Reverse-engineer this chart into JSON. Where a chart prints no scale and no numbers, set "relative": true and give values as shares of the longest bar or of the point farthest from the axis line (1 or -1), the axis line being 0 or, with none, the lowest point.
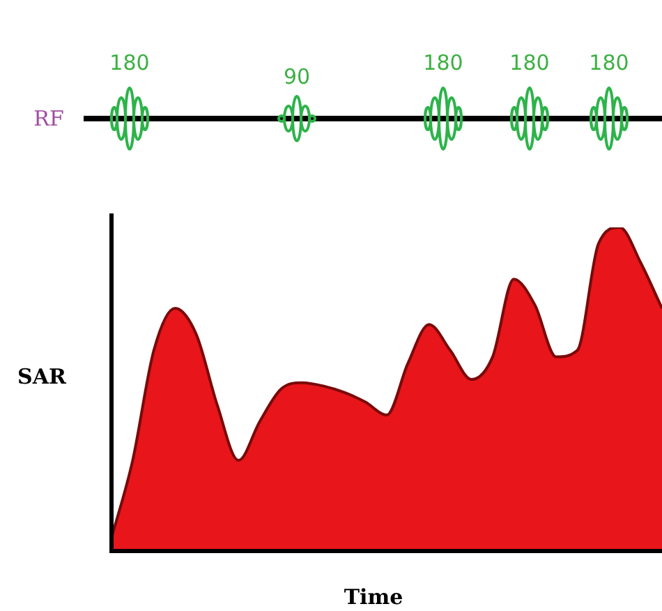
{
  "chart_data": {
    "type": "area",
    "relative": true,
    "xlabel": "Time",
    "ylabel": "SAR",
    "annotations": [
      "RF",
      "180",
      "90",
      "180",
      "180",
      "180"
    ],
    "categories": [
      null,
      null,
      null,
      null,
      null,
      null,
      null,
      null,
      null,
      null,
      null,
      null,
      null,
      null,
      null,
      null,
      null,
      null,
      null,
      null,
      null,
      null,
      null,
      null,
      null,
      null,
      null
    ],
    "series": [
      {
        "color": "#e8151b",
        "values": [
          0.04,
          0.28,
          0.62,
          0.75,
          0.67,
          0.45,
          0.28,
          0.4,
          0.5,
          0.52,
          0.51,
          0.49,
          0.46,
          0.42,
          0.58,
          0.7,
          0.62,
          0.53,
          0.6,
          0.84,
          0.76,
          0.6,
          0.62,
          0.95,
          1,
          0.89,
          0.75
        ]
      }
    ],
    "legend": false
  }
}
